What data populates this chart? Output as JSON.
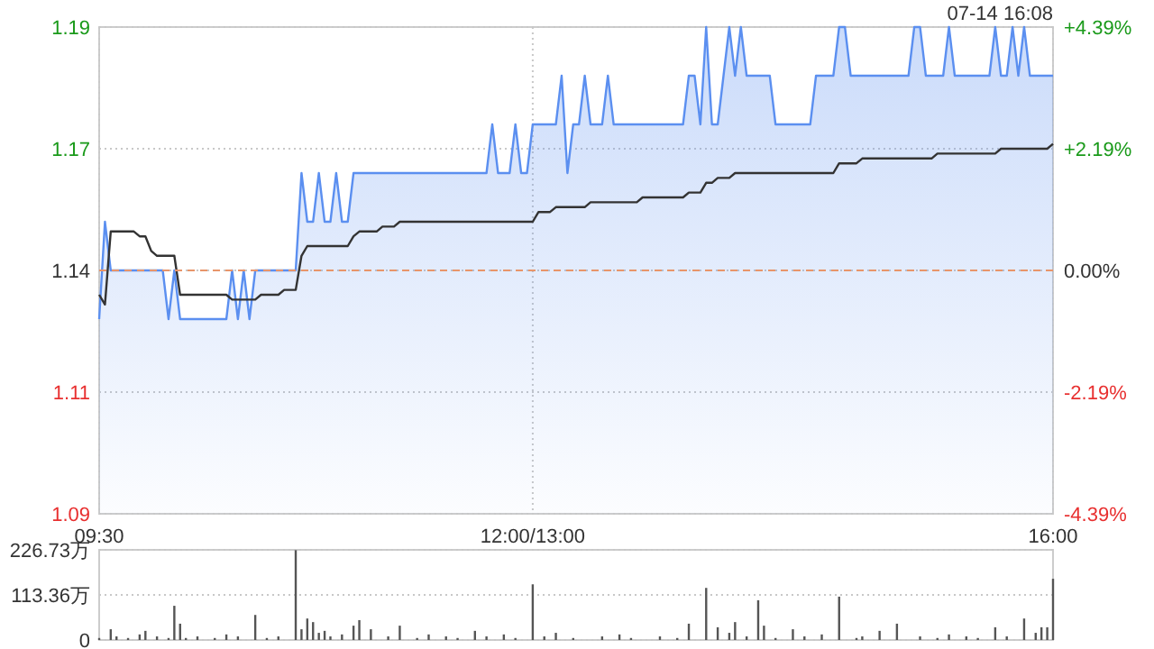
{
  "chart_data": [
    {
      "type": "line",
      "annotations": [
        "07-14 16:08"
      ],
      "categories": [
        "09:30",
        null,
        null,
        null,
        null,
        null,
        null,
        null,
        null,
        null,
        null,
        null,
        null,
        null,
        null,
        null,
        null,
        null,
        null,
        null,
        null,
        null,
        null,
        null,
        null,
        null,
        null,
        null,
        null,
        null,
        null,
        null,
        null,
        null,
        null,
        null,
        null,
        null,
        null,
        null,
        null,
        null,
        null,
        null,
        null,
        null,
        null,
        null,
        null,
        null,
        null,
        null,
        null,
        null,
        null,
        null,
        null,
        null,
        null,
        null,
        null,
        null,
        null,
        null,
        null,
        null,
        null,
        null,
        null,
        null,
        null,
        null,
        null,
        null,
        null,
        "12:00/13:00",
        null,
        null,
        null,
        null,
        null,
        null,
        null,
        null,
        null,
        null,
        null,
        null,
        null,
        null,
        null,
        null,
        null,
        null,
        null,
        null,
        null,
        null,
        null,
        null,
        null,
        null,
        null,
        null,
        null,
        null,
        null,
        null,
        null,
        null,
        null,
        null,
        null,
        null,
        null,
        null,
        null,
        null,
        null,
        null,
        null,
        null,
        null,
        null,
        null,
        null,
        null,
        null,
        null,
        null,
        null,
        null,
        null,
        null,
        null,
        null,
        null,
        null,
        null,
        null,
        null,
        null,
        null,
        null,
        null,
        null,
        null,
        null,
        null,
        null,
        null,
        null,
        null,
        null,
        null,
        null,
        null,
        null,
        null,
        null,
        null,
        null,
        null,
        null,
        null,
        "16:00"
      ],
      "ylim": [
        1.09,
        1.19
      ],
      "yticks": [
        1.09,
        {
          "value": 1.115,
          "label": "1.11"
        },
        1.14,
        {
          "value": 1.165,
          "label": "1.17"
        },
        1.19
      ],
      "y2lim": [
        -4.39,
        4.39
      ],
      "y2ticks": [
        {
          "value": -4.39,
          "label": "-4.39%"
        },
        {
          "value": -2.19,
          "label": "-2.19%"
        },
        {
          "value": 0,
          "label": "0.00%"
        },
        {
          "value": 2.19,
          "label": "+2.19%"
        },
        {
          "value": 4.39,
          "label": "+4.39%"
        }
      ],
      "grid": true,
      "ref_lines": [
        {
          "axis": "y",
          "value": 1.14,
          "color": "#e8956a",
          "line_style": "dashed"
        }
      ],
      "series": [
        {
          "type": "area",
          "color": "#5b8ff0",
          "values": [
            1.13,
            1.15,
            1.14,
            1.14,
            1.14,
            1.14,
            1.14,
            1.14,
            1.14,
            1.14,
            1.14,
            1.14,
            1.13,
            1.14,
            1.13,
            1.13,
            1.13,
            1.13,
            1.13,
            1.13,
            1.13,
            1.13,
            1.13,
            1.14,
            1.13,
            1.14,
            1.13,
            1.14,
            1.14,
            1.14,
            1.14,
            1.14,
            1.14,
            1.14,
            1.14,
            1.16,
            1.15,
            1.15,
            1.16,
            1.15,
            1.15,
            1.16,
            1.15,
            1.15,
            1.16,
            1.16,
            1.16,
            1.16,
            1.16,
            1.16,
            1.16,
            1.16,
            1.16,
            1.16,
            1.16,
            1.16,
            1.16,
            1.16,
            1.16,
            1.16,
            1.16,
            1.16,
            1.16,
            1.16,
            1.16,
            1.16,
            1.16,
            1.16,
            1.17,
            1.16,
            1.16,
            1.16,
            1.17,
            1.16,
            1.16,
            1.17,
            1.17,
            1.17,
            1.17,
            1.17,
            1.18,
            1.16,
            1.17,
            1.17,
            1.18,
            1.17,
            1.17,
            1.17,
            1.18,
            1.17,
            1.17,
            1.17,
            1.17,
            1.17,
            1.17,
            1.17,
            1.17,
            1.17,
            1.17,
            1.17,
            1.17,
            1.17,
            1.18,
            1.18,
            1.17,
            1.19,
            1.17,
            1.17,
            1.18,
            1.19,
            1.18,
            1.19,
            1.18,
            1.18,
            1.18,
            1.18,
            1.18,
            1.17,
            1.17,
            1.17,
            1.17,
            1.17,
            1.17,
            1.17,
            1.18,
            1.18,
            1.18,
            1.18,
            1.19,
            1.19,
            1.18,
            1.18,
            1.18,
            1.18,
            1.18,
            1.18,
            1.18,
            1.18,
            1.18,
            1.18,
            1.18,
            1.19,
            1.19,
            1.18,
            1.18,
            1.18,
            1.18,
            1.19,
            1.18,
            1.18,
            1.18,
            1.18,
            1.18,
            1.18,
            1.18,
            1.19,
            1.18,
            1.18,
            1.19,
            1.18,
            1.19,
            1.18,
            1.18,
            1.18,
            1.18,
            1.18
          ]
        },
        {
          "type": "line",
          "color": "#333333",
          "values": [
            1.135,
            1.133,
            1.148,
            1.148,
            1.148,
            1.148,
            1.148,
            1.147,
            1.147,
            1.144,
            1.143,
            1.143,
            1.143,
            1.143,
            1.135,
            1.135,
            1.135,
            1.135,
            1.135,
            1.135,
            1.135,
            1.135,
            1.135,
            1.134,
            1.134,
            1.134,
            1.134,
            1.134,
            1.135,
            1.135,
            1.135,
            1.135,
            1.136,
            1.136,
            1.136,
            1.143,
            1.145,
            1.145,
            1.145,
            1.145,
            1.145,
            1.145,
            1.145,
            1.145,
            1.147,
            1.148,
            1.148,
            1.148,
            1.148,
            1.149,
            1.149,
            1.149,
            1.15,
            1.15,
            1.15,
            1.15,
            1.15,
            1.15,
            1.15,
            1.15,
            1.15,
            1.15,
            1.15,
            1.15,
            1.15,
            1.15,
            1.15,
            1.15,
            1.15,
            1.15,
            1.15,
            1.15,
            1.15,
            1.15,
            1.15,
            1.15,
            1.152,
            1.152,
            1.152,
            1.153,
            1.153,
            1.153,
            1.153,
            1.153,
            1.153,
            1.154,
            1.154,
            1.154,
            1.154,
            1.154,
            1.154,
            1.154,
            1.154,
            1.154,
            1.155,
            1.155,
            1.155,
            1.155,
            1.155,
            1.155,
            1.155,
            1.155,
            1.156,
            1.156,
            1.156,
            1.158,
            1.158,
            1.159,
            1.159,
            1.159,
            1.16,
            1.16,
            1.16,
            1.16,
            1.16,
            1.16,
            1.16,
            1.16,
            1.16,
            1.16,
            1.16,
            1.16,
            1.16,
            1.16,
            1.16,
            1.16,
            1.16,
            1.16,
            1.162,
            1.162,
            1.162,
            1.162,
            1.163,
            1.163,
            1.163,
            1.163,
            1.163,
            1.163,
            1.163,
            1.163,
            1.163,
            1.163,
            1.163,
            1.163,
            1.163,
            1.164,
            1.164,
            1.164,
            1.164,
            1.164,
            1.164,
            1.164,
            1.164,
            1.164,
            1.164,
            1.164,
            1.165,
            1.165,
            1.165,
            1.165,
            1.165,
            1.165,
            1.165,
            1.165,
            1.165,
            1.166
          ]
        }
      ]
    },
    {
      "type": "bar",
      "color": "#555555",
      "tick_labels": "y",
      "grid": "y",
      "categories": [
        null,
        null,
        null,
        null,
        null,
        null,
        null,
        null,
        null,
        null,
        null,
        null,
        null,
        null,
        null,
        null,
        null,
        null,
        null,
        null,
        null,
        null,
        null,
        null,
        null,
        null,
        null,
        null,
        null,
        null,
        null,
        null,
        null,
        null,
        null,
        null,
        null,
        null,
        null,
        null,
        null,
        null,
        null,
        null,
        null,
        null,
        null,
        null,
        null,
        null,
        null,
        null,
        null,
        null,
        null,
        null,
        null,
        null,
        null,
        null,
        null,
        null,
        null,
        null,
        null,
        null,
        null,
        null,
        null,
        null,
        null,
        null,
        null,
        null,
        null,
        null,
        null,
        null,
        null,
        null,
        null,
        null,
        null,
        null,
        null,
        null,
        null,
        null,
        null,
        null,
        null,
        null,
        null,
        null,
        null,
        null,
        null,
        null,
        null,
        null,
        null,
        null,
        null,
        null,
        null,
        null,
        null,
        null,
        null,
        null,
        null,
        null,
        null,
        null,
        null,
        null,
        null,
        null,
        null,
        null,
        null,
        null,
        null,
        null,
        null,
        null,
        null,
        null,
        null,
        null,
        null,
        null,
        null,
        null,
        null,
        null,
        null,
        null,
        null,
        null,
        null,
        null,
        null,
        null,
        null,
        null,
        null,
        null,
        null,
        null,
        null,
        null,
        null,
        null,
        null,
        null,
        null,
        null,
        null,
        null,
        null,
        null,
        null,
        null,
        null,
        null
      ],
      "ylim": [
        0,
        226.73
      ],
      "yticks": [
        0,
        {
          "value": 113.36,
          "label": "113.36万"
        },
        {
          "value": 226.73,
          "label": "226.73万"
        }
      ],
      "values": [
        5,
        null,
        27,
        9,
        null,
        5,
        null,
        14,
        23,
        null,
        9,
        null,
        5,
        86,
        41,
        5,
        null,
        9,
        null,
        null,
        5,
        null,
        14,
        null,
        9,
        null,
        null,
        63,
        null,
        5,
        null,
        9,
        null,
        null,
        226,
        27,
        54,
        45,
        18,
        23,
        9,
        null,
        14,
        null,
        36,
        50,
        null,
        27,
        null,
        null,
        9,
        null,
        36,
        null,
        null,
        5,
        null,
        14,
        null,
        null,
        9,
        null,
        5,
        null,
        null,
        23,
        null,
        9,
        null,
        null,
        14,
        null,
        5,
        null,
        null,
        140,
        null,
        9,
        null,
        18,
        null,
        null,
        5,
        null,
        null,
        null,
        null,
        9,
        null,
        null,
        14,
        null,
        5,
        null,
        null,
        null,
        null,
        9,
        null,
        null,
        5,
        null,
        41,
        null,
        null,
        131,
        null,
        32,
        null,
        18,
        45,
        null,
        9,
        null,
        100,
        36,
        null,
        5,
        null,
        null,
        27,
        null,
        9,
        null,
        null,
        14,
        null,
        null,
        109,
        null,
        null,
        5,
        9,
        null,
        null,
        23,
        null,
        null,
        41,
        null,
        null,
        null,
        9,
        null,
        null,
        5,
        null,
        14,
        null,
        null,
        9,
        null,
        5,
        null,
        null,
        32,
        null,
        9,
        null,
        null,
        54,
        null,
        18,
        32,
        32,
        154
      ]
    }
  ]
}
